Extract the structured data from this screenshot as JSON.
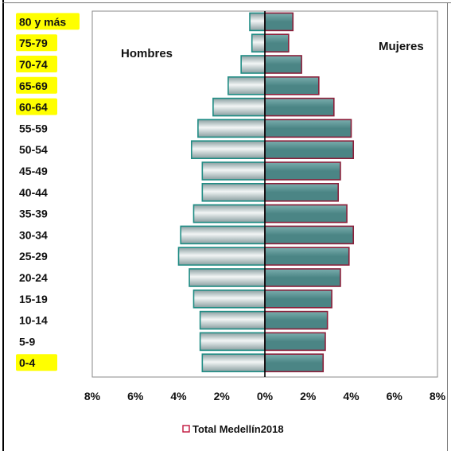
{
  "chart_data": {
    "type": "bar",
    "orientation": "horizontal-population-pyramid",
    "categories": [
      "80 y más",
      "75-79",
      "70-74",
      "65-69",
      "60-64",
      "55-59",
      "50-54",
      "45-49",
      "40-44",
      "35-39",
      "30-34",
      "25-29",
      "20-24",
      "15-19",
      "10-14",
      "5-9",
      "0-4"
    ],
    "highlighted_categories": [
      "80 y más",
      "75-79",
      "70-74",
      "65-69",
      "60-64",
      "0-4"
    ],
    "series": [
      {
        "name": "Hombres",
        "values": [
          0.7,
          0.6,
          1.1,
          1.7,
          2.4,
          3.1,
          3.4,
          2.9,
          2.9,
          3.3,
          3.9,
          4.0,
          3.5,
          3.3,
          3.0,
          3.0,
          2.9
        ]
      },
      {
        "name": "Mujeres",
        "values": [
          1.3,
          1.1,
          1.7,
          2.5,
          3.2,
          4.0,
          4.1,
          3.5,
          3.4,
          3.8,
          4.1,
          3.9,
          3.5,
          3.1,
          2.9,
          2.8,
          2.7
        ]
      }
    ],
    "xlim": [
      -8,
      8
    ],
    "xticks": [
      "8%",
      "6%",
      "4%",
      "2%",
      "0%",
      "2%",
      "4%",
      "6%",
      "8%"
    ],
    "legend": {
      "label": "Total Medellín2018",
      "placement": "bottom"
    },
    "grid": false,
    "colors": {
      "hombres_fill_light": "#f2f5f5",
      "hombres_fill_dark": "#8a9ea0",
      "hombres_stroke": "#1f8c84",
      "mujeres_fill": "#4b8585",
      "mujeres_fill_light": "#7aadad",
      "mujeres_stroke": "#8b1f3a",
      "highlight": "#ffff00",
      "legend_stroke": "#c0143c"
    }
  }
}
